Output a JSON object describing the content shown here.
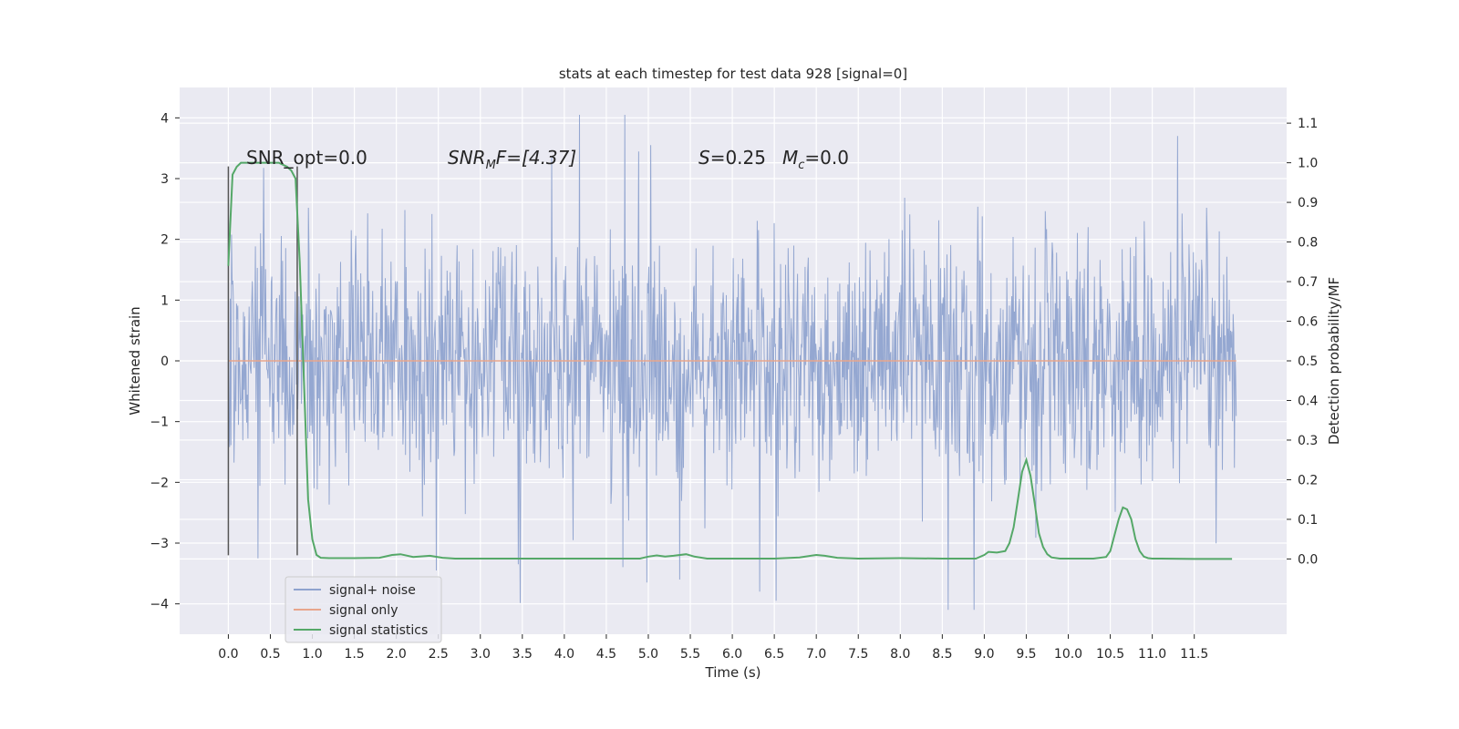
{
  "chart_data": {
    "type": "line",
    "title": "stats at each timestep for test data 928 [signal=0]",
    "xlabel": "Time (s)",
    "ylabel": "Whitened strain",
    "y2label": "Detection probability/MF",
    "xlim": [
      -0.58,
      12.6
    ],
    "ylim": [
      -4.5,
      4.5
    ],
    "y2lim": [
      -0.19,
      1.19
    ],
    "x_ticks": [
      0.0,
      0.5,
      1.0,
      1.5,
      2.0,
      2.5,
      3.0,
      3.5,
      4.0,
      4.5,
      5.0,
      5.5,
      6.0,
      6.5,
      7.0,
      7.5,
      8.0,
      8.5,
      9.0,
      9.5,
      10.0,
      10.5,
      11.0,
      11.5
    ],
    "x_tick_labels": [
      "0.0",
      "0.5",
      "1.0",
      "1.5",
      "2.0",
      "2.5",
      "3.0",
      "3.5",
      "4.0",
      "4.5",
      "5.0",
      "5.5",
      "6.0",
      "6.5",
      "7.0",
      "7.5",
      "8.0",
      "8.5",
      "9.0",
      "9.5",
      "10.0",
      "10.5",
      "11.0",
      "11.5"
    ],
    "y_ticks": [
      4,
      3,
      2,
      1,
      0,
      -1,
      -2,
      -3,
      -4
    ],
    "y_tick_labels": [
      "4",
      "3",
      "2",
      "1",
      "0",
      "−1",
      "−2",
      "−3",
      "−4"
    ],
    "y2_ticks": [
      1.1,
      1.0,
      0.9,
      0.8,
      0.7,
      0.6,
      0.5,
      0.4,
      0.3,
      0.2,
      0.1,
      0.0
    ],
    "y2_tick_labels": [
      "1.1",
      "1.0",
      "0.9",
      "0.8",
      "0.7",
      "0.6",
      "0.5",
      "0.4",
      "0.3",
      "0.2",
      "0.1",
      "0.0"
    ],
    "grid": true,
    "legend_position": "lower-left",
    "legend": [
      "signal+ noise",
      "signal only",
      "signal statistics"
    ],
    "annotations": {
      "snr_opt": "SNR_opt=0.0",
      "snr_mf_sym": "SNR",
      "snr_mf_sub": "M",
      "snr_mf_rest": "F=[4.37]",
      "s_sym": "S",
      "s_rest": "=0.25",
      "mc_sym": "M",
      "mc_sub": "c",
      "mc_rest": "=0.0"
    },
    "vertical_lines_x": [
      0.0,
      0.82
    ],
    "series": [
      {
        "name": "signal+ noise",
        "axis": "left",
        "color": "#8fa3cf",
        "duration": 12.0,
        "samples": 1600,
        "typical_std": 1.0,
        "approx_range": [
          -4.1,
          4.1
        ],
        "notable_peaks": [
          {
            "x": 4.18,
            "y": 4.05
          },
          {
            "x": 4.72,
            "y": 4.05
          },
          {
            "x": 5.03,
            "y": 3.55
          },
          {
            "x": 11.3,
            "y": 3.7
          },
          {
            "x": 3.85,
            "y": 3.35
          },
          {
            "x": 8.88,
            "y": -4.1
          },
          {
            "x": 6.52,
            "y": -3.95
          },
          {
            "x": 6.33,
            "y": -3.8
          },
          {
            "x": 5.37,
            "y": -3.6
          },
          {
            "x": 4.98,
            "y": -3.65
          },
          {
            "x": 2.48,
            "y": -3.45
          },
          {
            "x": 3.45,
            "y": -3.35
          },
          {
            "x": 0.35,
            "y": -3.25
          }
        ]
      },
      {
        "name": "signal only",
        "axis": "left",
        "color": "#e8a58c",
        "x": [
          0.0,
          12.0
        ],
        "y": [
          0.0,
          0.0
        ]
      },
      {
        "name": "signal statistics",
        "axis": "right",
        "color": "#55a868",
        "x": [
          0.0,
          0.05,
          0.1,
          0.15,
          0.2,
          0.3,
          0.4,
          0.5,
          0.6,
          0.7,
          0.75,
          0.8,
          0.85,
          0.9,
          0.95,
          1.0,
          1.05,
          1.1,
          1.2,
          1.5,
          1.8,
          1.95,
          2.05,
          2.2,
          2.4,
          2.55,
          2.7,
          3.0,
          4.0,
          4.9,
          5.0,
          5.1,
          5.2,
          5.3,
          5.45,
          5.55,
          5.7,
          6.0,
          6.5,
          6.8,
          7.0,
          7.1,
          7.25,
          7.5,
          8.0,
          8.5,
          8.9,
          9.0,
          9.05,
          9.15,
          9.25,
          9.3,
          9.35,
          9.4,
          9.45,
          9.5,
          9.55,
          9.6,
          9.65,
          9.7,
          9.75,
          9.8,
          9.9,
          10.0,
          10.3,
          10.45,
          10.5,
          10.55,
          10.6,
          10.65,
          10.7,
          10.75,
          10.8,
          10.85,
          10.9,
          10.95,
          11.0,
          11.1,
          11.5,
          11.95
        ],
        "y": [
          0.74,
          0.97,
          0.99,
          1.0,
          1.0,
          1.0,
          1.0,
          1.0,
          1.0,
          0.99,
          0.98,
          0.96,
          0.75,
          0.45,
          0.15,
          0.05,
          0.01,
          0.003,
          0.002,
          0.002,
          0.003,
          0.01,
          0.012,
          0.005,
          0.008,
          0.003,
          0.001,
          0.001,
          0.001,
          0.001,
          0.006,
          0.009,
          0.006,
          0.008,
          0.012,
          0.006,
          0.001,
          0.001,
          0.001,
          0.004,
          0.01,
          0.008,
          0.003,
          0.001,
          0.002,
          0.001,
          0.001,
          0.01,
          0.018,
          0.016,
          0.02,
          0.04,
          0.08,
          0.15,
          0.22,
          0.25,
          0.21,
          0.14,
          0.065,
          0.03,
          0.012,
          0.004,
          0.001,
          0.001,
          0.001,
          0.005,
          0.02,
          0.06,
          0.1,
          0.13,
          0.125,
          0.1,
          0.05,
          0.02,
          0.006,
          0.002,
          0.001,
          0.001,
          0.0,
          0.0
        ]
      }
    ]
  }
}
